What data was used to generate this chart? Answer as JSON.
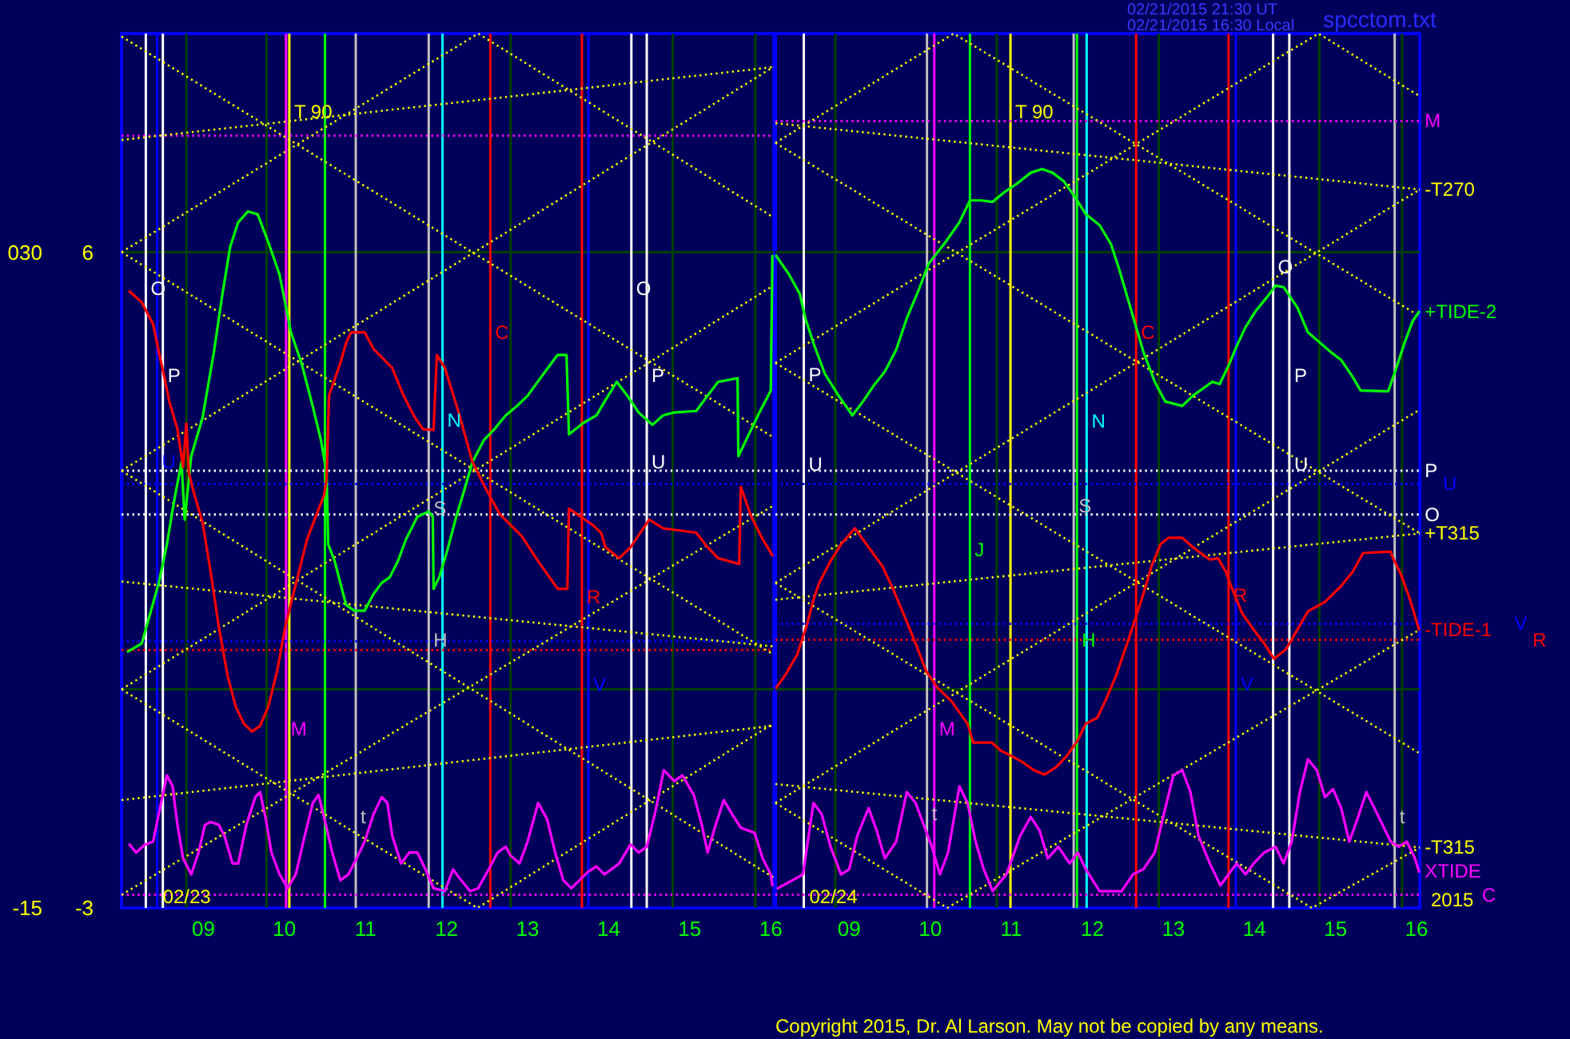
{
  "chart_data": [
    {
      "type": "line",
      "xlim": [
        8.0,
        16.05
      ],
      "xticks": [
        {
          "value": 9,
          "label": "09"
        },
        10,
        11,
        12,
        13,
        14,
        15,
        16
      ],
      "ylim": [
        -3,
        9
      ],
      "yticks": [
        -3,
        6
      ],
      "y2lim": [
        -15,
        45
      ],
      "y2ticks": [
        -15,
        {
          "value": 30,
          "label": "030"
        }
      ],
      "series": [
        {
          "color": "#ffff00",
          "line_style": "dotted",
          "x": [
            8.0,
            16.04
          ],
          "values": [
            8.96,
            3.46
          ]
        },
        {
          "color": "#ffff00",
          "line_style": "dotted",
          "x": [
            8.0,
            12.4,
            16.04
          ],
          "values": [
            6.0,
            9.0,
            6.48
          ]
        },
        {
          "color": "#ffff00",
          "line_style": "dotted",
          "x": [
            8.0,
            16.04
          ],
          "values": [
            6.0,
            0.48
          ]
        },
        {
          "color": "#ffff00",
          "line_style": "dotted",
          "x": [
            8.0,
            16.04
          ],
          "values": [
            3.0,
            8.54
          ]
        },
        {
          "color": "#ffff00",
          "line_style": "dotted",
          "x": [
            8.0,
            16.04
          ],
          "values": [
            3.0,
            -2.58
          ]
        },
        {
          "color": "#ffff00",
          "line_style": "dotted",
          "x": [
            8.0,
            16.04
          ],
          "values": [
            0.0,
            5.54
          ]
        },
        {
          "color": "#ffff00",
          "line_style": "dotted",
          "x": [
            8.0,
            12.39,
            16.04
          ],
          "values": [
            0.0,
            -3.0,
            -0.47
          ]
        },
        {
          "color": "#ffff00",
          "line_style": "dotted",
          "x": [
            8.0,
            16.04
          ],
          "values": [
            -2.82,
            2.52
          ]
        },
        {
          "color": "#ffff00",
          "line_style": "dotted",
          "x": [
            8.0,
            16.04
          ],
          "values": [
            7.54,
            8.54
          ]
        },
        {
          "color": "#ffff00",
          "line_style": "dotted",
          "x": [
            8.0,
            16.04
          ],
          "values": [
            1.48,
            0.59
          ]
        },
        {
          "color": "#ffff00",
          "line_style": "dotted",
          "x": [
            8.0,
            16.04
          ],
          "values": [
            -1.52,
            -0.5
          ]
        },
        {
          "color": "#00ff00",
          "x": [
            8.08,
            8.25,
            8.46,
            8.56,
            8.65,
            8.74,
            8.78,
            8.86,
            9.0,
            9.14,
            9.24,
            9.34,
            9.44,
            9.56,
            9.68,
            9.81,
            9.95,
            10.09,
            10.22,
            10.36,
            10.46,
            10.53,
            10.55,
            10.63,
            10.77,
            10.87,
            11.0,
            11.11,
            11.21,
            11.31,
            11.41,
            11.51,
            11.65,
            11.79,
            11.84,
            11.85,
            11.92,
            12.02,
            12.13,
            12.23,
            12.33,
            12.47,
            12.6,
            12.74,
            12.87,
            13.01,
            13.18,
            13.38,
            13.49,
            13.52,
            13.69,
            13.86,
            13.96,
            14.11,
            14.24,
            14.38,
            14.55,
            14.68,
            14.82,
            15.09,
            15.23,
            15.36,
            15.6,
            15.61,
            15.74,
            15.87,
            16.01,
            16.03
          ],
          "values": [
            0.52,
            0.63,
            1.46,
            1.99,
            2.59,
            3.12,
            2.33,
            3.2,
            3.73,
            4.63,
            5.39,
            6.07,
            6.41,
            6.56,
            6.52,
            6.14,
            5.69,
            4.9,
            4.48,
            3.88,
            3.42,
            2.97,
            1.99,
            1.76,
            1.16,
            1.08,
            1.08,
            1.31,
            1.46,
            1.54,
            1.76,
            2.06,
            2.37,
            2.44,
            2.37,
            1.38,
            1.54,
            1.91,
            2.37,
            2.74,
            3.12,
            3.42,
            3.57,
            3.76,
            3.88,
            4.03,
            4.29,
            4.59,
            4.59,
            3.5,
            3.65,
            3.76,
            3.95,
            4.22,
            4.03,
            3.8,
            3.63,
            3.76,
            3.8,
            3.82,
            4.03,
            4.22,
            4.27,
            3.2,
            3.5,
            3.8,
            4.1,
            5.95
          ]
        },
        {
          "color": "#ff0000",
          "x": [
            8.1,
            8.25,
            8.39,
            8.46,
            8.52,
            8.59,
            8.69,
            8.76,
            8.8,
            8.83,
            8.9,
            9.0,
            9.1,
            9.2,
            9.31,
            9.41,
            9.51,
            9.61,
            9.71,
            9.81,
            9.92,
            10.02,
            10.12,
            10.29,
            10.5,
            10.53,
            10.56,
            10.7,
            10.77,
            10.83,
            11.0,
            11.11,
            11.34,
            11.48,
            11.62,
            11.72,
            11.85,
            11.89,
            11.99,
            12.16,
            12.33,
            12.5,
            12.67,
            12.94,
            13.14,
            13.38,
            13.5,
            13.52,
            13.82,
            13.92,
            13.97,
            14.14,
            14.28,
            14.51,
            14.68,
            15.09,
            15.23,
            15.36,
            15.62,
            15.64,
            15.77,
            15.91,
            16.03
          ],
          "values": [
            5.46,
            5.31,
            5.01,
            4.63,
            4.33,
            3.95,
            3.57,
            3.05,
            3.65,
            2.97,
            2.67,
            2.29,
            1.61,
            0.86,
            0.18,
            -0.24,
            -0.47,
            -0.58,
            -0.5,
            -0.24,
            0.25,
            0.86,
            1.31,
            2.06,
            2.67,
            2.89,
            4.03,
            4.48,
            4.75,
            4.9,
            4.9,
            4.67,
            4.41,
            4.03,
            3.73,
            3.57,
            3.56,
            4.59,
            4.41,
            3.8,
            3.12,
            2.74,
            2.4,
            2.1,
            1.76,
            1.38,
            1.38,
            2.48,
            2.25,
            2.14,
            1.95,
            1.8,
            1.95,
            2.33,
            2.21,
            2.15,
            1.95,
            1.8,
            1.72,
            2.78,
            2.37,
            2.06,
            1.84
          ]
        },
        {
          "color": "#ff00ff",
          "x": [
            8.1,
            8.18,
            8.29,
            8.39,
            8.46,
            8.56,
            8.63,
            8.69,
            8.76,
            8.86,
            8.95,
            9.03,
            9.1,
            9.2,
            9.27,
            9.37,
            9.44,
            9.54,
            9.65,
            9.71,
            9.78,
            9.85,
            9.95,
            10.05,
            10.15,
            10.26,
            10.36,
            10.43,
            10.49,
            10.6,
            10.7,
            10.8,
            10.9,
            11.0,
            11.11,
            11.21,
            11.28,
            11.34,
            11.45,
            11.55,
            11.65,
            11.75,
            11.85,
            11.99,
            12.09,
            12.19,
            12.3,
            12.4,
            12.53,
            12.64,
            12.74,
            12.8,
            12.91,
            13.01,
            13.14,
            13.25,
            13.35,
            13.45,
            13.55,
            13.65,
            13.76,
            13.86,
            13.96,
            14.14,
            14.28,
            14.38,
            14.48,
            14.58,
            14.69,
            14.82,
            14.92,
            15.06,
            15.16,
            15.23,
            15.33,
            15.43,
            15.53,
            15.64,
            15.81,
            15.91,
            16.01,
            16.03
          ],
          "values": [
            -2.13,
            -2.24,
            -2.13,
            -2.09,
            -1.71,
            -1.18,
            -1.33,
            -1.86,
            -2.32,
            -2.54,
            -2.24,
            -1.86,
            -1.82,
            -1.86,
            -2.01,
            -2.39,
            -2.39,
            -1.86,
            -1.48,
            -1.41,
            -1.78,
            -2.24,
            -2.54,
            -2.73,
            -2.54,
            -2.01,
            -1.56,
            -1.45,
            -1.71,
            -2.24,
            -2.62,
            -2.54,
            -2.32,
            -2.09,
            -1.71,
            -1.48,
            -1.56,
            -2.01,
            -2.39,
            -2.24,
            -2.24,
            -2.47,
            -2.73,
            -2.77,
            -2.47,
            -2.62,
            -2.77,
            -2.73,
            -2.47,
            -2.24,
            -2.16,
            -2.28,
            -2.39,
            -2.09,
            -1.56,
            -1.78,
            -2.24,
            -2.62,
            -2.73,
            -2.62,
            -2.5,
            -2.43,
            -2.54,
            -2.39,
            -2.13,
            -2.24,
            -2.16,
            -1.71,
            -1.11,
            -1.26,
            -1.18,
            -1.45,
            -1.86,
            -2.24,
            -1.86,
            -1.52,
            -1.71,
            -1.9,
            -1.97,
            -2.32,
            -2.54,
            -2.69
          ]
        }
      ],
      "ref_lines": [
        {
          "axis": "y",
          "value": 6,
          "color": "#004000"
        },
        {
          "axis": "y",
          "value": 0,
          "color": "#004000"
        },
        {
          "axis": "x",
          "value": 8.3,
          "color": "#ffffff"
        },
        {
          "axis": "x",
          "value": 8.44,
          "color": "#0000ff"
        },
        {
          "axis": "x",
          "value": 8.51,
          "color": "#ffffff"
        },
        {
          "axis": "x",
          "value": 8.8,
          "color": "#004000"
        },
        {
          "axis": "x",
          "value": 9.79,
          "color": "#004000"
        },
        {
          "axis": "x",
          "value": 10.03,
          "color": "#ff00ff"
        },
        {
          "axis": "x",
          "value": 10.07,
          "color": "#ffff00"
        },
        {
          "axis": "x",
          "value": 10.51,
          "color": "#00ff00"
        },
        {
          "axis": "x",
          "value": 10.89,
          "color": "#c0c0c0"
        },
        {
          "axis": "x",
          "value": 11.79,
          "color": "#c0c0c0"
        },
        {
          "axis": "x",
          "value": 11.96,
          "color": "#00ffff"
        },
        {
          "axis": "x",
          "value": 12.55,
          "color": "#ff0000"
        },
        {
          "axis": "x",
          "value": 12.8,
          "color": "#004000"
        },
        {
          "axis": "x",
          "value": 13.68,
          "color": "#ff0000"
        },
        {
          "axis": "x",
          "value": 13.76,
          "color": "#0000ff"
        },
        {
          "axis": "x",
          "value": 14.29,
          "color": "#ffffff"
        },
        {
          "axis": "x",
          "value": 14.48,
          "color": "#ffffff"
        },
        {
          "axis": "x",
          "value": 14.8,
          "color": "#004000"
        },
        {
          "axis": "x",
          "value": 15.82,
          "color": "#004000"
        },
        {
          "axis": "y2",
          "value": 38.0,
          "color": "#ff00ff",
          "line_style": "dotted"
        },
        {
          "axis": "y2",
          "value": 15.0,
          "color": "#ffffff",
          "line_style": "dotted"
        },
        {
          "axis": "y2",
          "value": 14.1,
          "color": "#0000ff",
          "line_style": "dotted"
        },
        {
          "axis": "y2",
          "value": 12.0,
          "color": "#ffffff",
          "line_style": "dotted"
        },
        {
          "axis": "y2",
          "value": 3.3,
          "color": "#0000ff",
          "line_style": "dotted"
        },
        {
          "axis": "y2",
          "value": 2.7,
          "color": "#ff0000",
          "line_style": "dotted"
        },
        {
          "axis": "y2",
          "value": -14.1,
          "color": "#ff00ff",
          "line_style": "dotted"
        }
      ],
      "annotations": [
        {
          "text": "T 90",
          "x": 10.07,
          "y": 7.92
        },
        {
          "text": "O",
          "x": 8.3,
          "y": 5.5
        },
        {
          "text": "U",
          "x": 8.44,
          "y": 3.12
        },
        {
          "text": "P",
          "x": 8.51,
          "y": 4.31
        },
        {
          "text": "M",
          "x": 10.03,
          "y": -0.54
        },
        {
          "text": "t",
          "x": 10.89,
          "y": -1.75
        },
        {
          "text": "S",
          "x": 11.79,
          "y": 2.48
        },
        {
          "text": "H",
          "x": 11.79,
          "y": 0.67
        },
        {
          "text": "N",
          "x": 11.96,
          "y": 3.69
        },
        {
          "text": "C",
          "x": 12.55,
          "y": 4.9
        },
        {
          "text": "R",
          "x": 13.68,
          "y": 1.27
        },
        {
          "text": "V",
          "x": 13.76,
          "y": 0.06
        },
        {
          "text": "O",
          "x": 14.29,
          "y": 5.5
        },
        {
          "text": "P",
          "x": 14.48,
          "y": 4.31
        },
        {
          "text": "U",
          "x": 14.48,
          "y": 3.12
        },
        {
          "text": "02/23",
          "x": 8.45,
          "y": -2.85
        }
      ]
    },
    {
      "type": "line",
      "xlim": [
        8.1,
        16.05
      ],
      "xticks": [
        {
          "value": 9,
          "label": "09"
        },
        10,
        11,
        12,
        13,
        14,
        15,
        16
      ],
      "ylim": [
        -3,
        9
      ],
      "y2lim": [
        -15,
        45
      ],
      "tick_labels": "x",
      "series": [
        {
          "color": "#ffff00",
          "line_style": "dotted",
          "x": [
            8.1,
            16.05
          ],
          "values": [
            7.5,
            2.14
          ]
        },
        {
          "color": "#ffff00",
          "line_style": "dotted",
          "x": [
            8.1,
            10.3,
            16.05
          ],
          "values": [
            7.5,
            9.0,
            5.12
          ]
        },
        {
          "color": "#ffff00",
          "line_style": "dotted",
          "x": [
            8.1,
            16.05
          ],
          "values": [
            4.48,
            -0.88
          ]
        },
        {
          "color": "#ffff00",
          "line_style": "dotted",
          "x": [
            8.1,
            14.8,
            16.05
          ],
          "values": [
            4.48,
            9.0,
            8.14
          ]
        },
        {
          "color": "#ffff00",
          "line_style": "dotted",
          "x": [
            8.1,
            16.05
          ],
          "values": [
            1.46,
            6.86
          ]
        },
        {
          "color": "#ffff00",
          "line_style": "dotted",
          "x": [
            8.1,
            14.72,
            16.05
          ],
          "values": [
            1.46,
            -3.0,
            -2.17
          ]
        },
        {
          "color": "#ffff00",
          "line_style": "dotted",
          "x": [
            8.1,
            16.05
          ],
          "values": [
            -1.56,
            3.84
          ]
        },
        {
          "color": "#ffff00",
          "line_style": "dotted",
          "x": [
            8.1,
            10.22,
            16.05
          ],
          "values": [
            -1.56,
            -3.0,
            0.82
          ]
        },
        {
          "name": "-T270",
          "color": "#ffff00",
          "line_style": "dotted",
          "x": [
            8.1,
            16.05
          ],
          "values": [
            7.77,
            6.86
          ]
        },
        {
          "name": "+T315",
          "color": "#ffff00",
          "line_style": "dotted",
          "x": [
            8.1,
            16.05
          ],
          "values": [
            1.23,
            2.14
          ]
        },
        {
          "name": "-T315",
          "color": "#ffff00",
          "line_style": "dotted",
          "x": [
            8.1,
            16.05
          ],
          "values": [
            -1.3,
            -2.17
          ]
        },
        {
          "name": "+TIDE-2",
          "color": "#00ff00",
          "x": [
            8.11,
            8.27,
            8.4,
            8.47,
            8.57,
            8.71,
            8.88,
            9.05,
            9.18,
            9.32,
            9.45,
            9.59,
            9.72,
            9.86,
            9.99,
            10.2,
            10.37,
            10.5,
            10.64,
            10.78,
            10.92,
            11.08,
            11.25,
            11.39,
            11.52,
            11.66,
            11.8,
            11.93,
            12.1,
            12.24,
            12.34,
            12.44,
            12.54,
            12.64,
            12.78,
            12.91,
            13.12,
            13.25,
            13.49,
            13.58,
            13.69,
            13.79,
            13.9,
            14.03,
            14.17,
            14.27,
            14.37,
            14.54,
            14.67,
            14.95,
            15.08,
            15.22,
            15.32,
            15.66,
            15.76,
            15.86,
            15.96,
            16.04
          ],
          "values": [
            5.95,
            5.69,
            5.43,
            5.09,
            4.75,
            4.33,
            4.03,
            3.76,
            3.95,
            4.18,
            4.36,
            4.66,
            5.09,
            5.46,
            5.84,
            6.14,
            6.41,
            6.71,
            6.71,
            6.69,
            6.82,
            6.94,
            7.09,
            7.14,
            7.09,
            6.97,
            6.75,
            6.52,
            6.37,
            6.11,
            5.77,
            5.39,
            5.01,
            4.63,
            4.22,
            3.95,
            3.89,
            4.03,
            4.22,
            4.19,
            4.44,
            4.71,
            4.97,
            5.2,
            5.39,
            5.54,
            5.52,
            5.24,
            4.9,
            4.63,
            4.52,
            4.29,
            4.1,
            4.09,
            4.41,
            4.75,
            5.05,
            5.18
          ]
        },
        {
          "name": "-TIDE-1",
          "color": "#ff0000",
          "x": [
            8.11,
            8.23,
            8.37,
            8.49,
            8.57,
            8.64,
            8.78,
            8.91,
            9.08,
            9.25,
            9.42,
            9.55,
            9.69,
            9.83,
            9.96,
            10.1,
            10.27,
            10.47,
            10.54,
            10.77,
            10.88,
            11.02,
            11.15,
            11.29,
            11.42,
            11.56,
            11.69,
            11.83,
            11.93,
            12.07,
            12.17,
            12.3,
            12.44,
            12.54,
            12.64,
            12.74,
            12.85,
            12.95,
            13.12,
            13.25,
            13.46,
            13.56,
            13.66,
            13.72,
            13.86,
            14.0,
            14.13,
            14.25,
            14.4,
            14.54,
            14.67,
            14.88,
            15.08,
            15.22,
            15.35,
            15.69,
            15.72,
            15.82,
            15.93,
            16.04
          ],
          "values": [
            0.02,
            0.21,
            0.48,
            0.89,
            1.23,
            1.46,
            1.76,
            1.99,
            2.21,
            1.95,
            1.69,
            1.38,
            1.01,
            0.63,
            0.25,
            0.02,
            -0.16,
            -0.47,
            -0.73,
            -0.73,
            -0.84,
            -0.92,
            -1.0,
            -1.11,
            -1.17,
            -1.07,
            -0.92,
            -0.7,
            -0.47,
            -0.39,
            -0.16,
            0.18,
            0.63,
            0.97,
            1.31,
            1.69,
            1.99,
            2.08,
            2.08,
            1.95,
            1.78,
            1.8,
            1.61,
            1.42,
            1.04,
            0.82,
            0.63,
            0.42,
            0.55,
            0.82,
            1.07,
            1.2,
            1.42,
            1.61,
            1.87,
            1.89,
            1.8,
            1.57,
            1.23,
            0.82
          ]
        },
        {
          "name": "XTIDE",
          "color": "#ff00ff",
          "x": [
            8.13,
            8.44,
            8.57,
            8.67,
            8.78,
            8.91,
            9.01,
            9.11,
            9.25,
            9.35,
            9.45,
            9.59,
            9.72,
            9.83,
            9.93,
            10.03,
            10.13,
            10.23,
            10.37,
            10.47,
            10.57,
            10.67,
            10.78,
            10.95,
            11.12,
            11.25,
            11.36,
            11.46,
            11.59,
            11.73,
            11.83,
            11.93,
            12.1,
            12.37,
            12.51,
            12.64,
            12.78,
            12.91,
            13.01,
            13.12,
            13.22,
            13.32,
            13.46,
            13.59,
            13.69,
            13.79,
            13.9,
            14.0,
            14.13,
            14.27,
            14.37,
            14.47,
            14.57,
            14.67,
            14.78,
            14.88,
            14.98,
            15.08,
            15.18,
            15.28,
            15.39,
            15.49,
            15.59,
            15.69,
            15.79,
            15.89,
            15.99,
            16.04
          ],
          "values": [
            -2.73,
            -2.54,
            -1.56,
            -1.71,
            -2.16,
            -2.54,
            -2.47,
            -2.01,
            -1.63,
            -1.94,
            -2.32,
            -2.09,
            -1.41,
            -1.56,
            -1.86,
            -2.16,
            -2.54,
            -2.24,
            -1.33,
            -1.56,
            -2.09,
            -2.47,
            -2.77,
            -2.54,
            -2.01,
            -1.75,
            -1.94,
            -2.32,
            -2.16,
            -2.39,
            -2.24,
            -2.47,
            -2.77,
            -2.77,
            -2.54,
            -2.47,
            -2.24,
            -1.63,
            -1.18,
            -1.11,
            -1.41,
            -2.01,
            -2.39,
            -2.69,
            -2.54,
            -2.39,
            -2.54,
            -2.39,
            -2.24,
            -2.16,
            -2.39,
            -2.09,
            -1.41,
            -0.96,
            -1.11,
            -1.48,
            -1.37,
            -1.63,
            -2.09,
            -1.78,
            -1.41,
            -1.63,
            -1.86,
            -2.09,
            -2.16,
            -2.09,
            -2.32,
            -2.5
          ]
        }
      ],
      "ref_lines": [
        {
          "axis": "y",
          "value": 6,
          "color": "#004000"
        },
        {
          "axis": "y",
          "value": 0,
          "color": "#004000"
        },
        {
          "axis": "x",
          "value": 8.45,
          "color": "#ffffff"
        },
        {
          "axis": "x",
          "value": 8.84,
          "color": "#004000"
        },
        {
          "axis": "x",
          "value": 9.97,
          "color": "#c0c0c0"
        },
        {
          "axis": "x",
          "value": 10.06,
          "color": "#ff00ff"
        },
        {
          "axis": "x",
          "value": 10.5,
          "color": "#00ff00"
        },
        {
          "axis": "x",
          "value": 10.83,
          "color": "#004000"
        },
        {
          "axis": "x",
          "value": 11.0,
          "color": "#ffff00"
        },
        {
          "axis": "x",
          "value": 11.78,
          "color": "#c0c0c0"
        },
        {
          "axis": "x",
          "value": 11.82,
          "color": "#00ff00"
        },
        {
          "axis": "x",
          "value": 11.94,
          "color": "#00ffff"
        },
        {
          "axis": "x",
          "value": 12.55,
          "color": "#ff0000"
        },
        {
          "axis": "x",
          "value": 12.83,
          "color": "#004000"
        },
        {
          "axis": "x",
          "value": 13.69,
          "color": "#ff0000"
        },
        {
          "axis": "x",
          "value": 13.78,
          "color": "#0000ff"
        },
        {
          "axis": "x",
          "value": 14.24,
          "color": "#ffffff"
        },
        {
          "axis": "x",
          "value": 14.44,
          "color": "#ffffff"
        },
        {
          "axis": "x",
          "value": 14.81,
          "color": "#004000"
        },
        {
          "axis": "x",
          "value": 15.74,
          "color": "#c0c0c0"
        },
        {
          "axis": "x",
          "value": 15.83,
          "color": "#004000"
        },
        {
          "axis": "y2",
          "value": 39.0,
          "color": "#ff00ff",
          "line_style": "dotted",
          "label": "M"
        },
        {
          "axis": "y2",
          "value": 15.0,
          "color": "#ffffff",
          "line_style": "dotted",
          "label": "P"
        },
        {
          "axis": "y2",
          "value": 14.1,
          "color": "#0000ff",
          "line_style": "dotted",
          "label": "U"
        },
        {
          "axis": "y2",
          "value": 12.0,
          "color": "#ffffff",
          "line_style": "dotted",
          "label": "O"
        },
        {
          "axis": "y2",
          "value": 4.5,
          "color": "#0000ff",
          "line_style": "dotted",
          "label": "V"
        },
        {
          "axis": "y2",
          "value": 3.4,
          "color": "#ff0000",
          "line_style": "dotted",
          "label": "R"
        },
        {
          "axis": "y2",
          "value": -14.1,
          "color": "#ff00ff",
          "line_style": "dotted",
          "label": "C"
        }
      ],
      "annotations": [
        {
          "text": "T 90",
          "x": 11.0,
          "y": 7.92
        },
        {
          "text": "P",
          "x": 8.45,
          "y": 4.32
        },
        {
          "text": "U",
          "x": 8.45,
          "y": 3.09
        },
        {
          "text": "t",
          "x": 9.97,
          "y": -1.71
        },
        {
          "text": "M",
          "x": 10.06,
          "y": -0.54
        },
        {
          "text": "J",
          "x": 10.5,
          "y": 1.91
        },
        {
          "text": "S",
          "x": 11.78,
          "y": 2.52
        },
        {
          "text": "H",
          "x": 11.82,
          "y": 0.67
        },
        {
          "text": "N",
          "x": 11.94,
          "y": 3.68
        },
        {
          "text": "C",
          "x": 12.55,
          "y": 4.9
        },
        {
          "text": "R",
          "x": 13.69,
          "y": 1.29
        },
        {
          "text": "V",
          "x": 13.78,
          "y": 0.07
        },
        {
          "text": "O",
          "x": 14.24,
          "y": 5.8
        },
        {
          "text": "P",
          "x": 14.44,
          "y": 4.3
        },
        {
          "text": "U",
          "x": 14.44,
          "y": 3.09
        },
        {
          "text": "t",
          "x": 15.74,
          "y": -1.75
        },
        {
          "text": "02/24",
          "x": 8.46,
          "y": -2.85
        },
        "02/21/2015 21:30 UT",
        "02/21/2015 16:30 Local",
        "spcctom.txt",
        "2015",
        "Copyright 2015, Dr. Al Larson. May not be copied by any means."
      ]
    }
  ]
}
